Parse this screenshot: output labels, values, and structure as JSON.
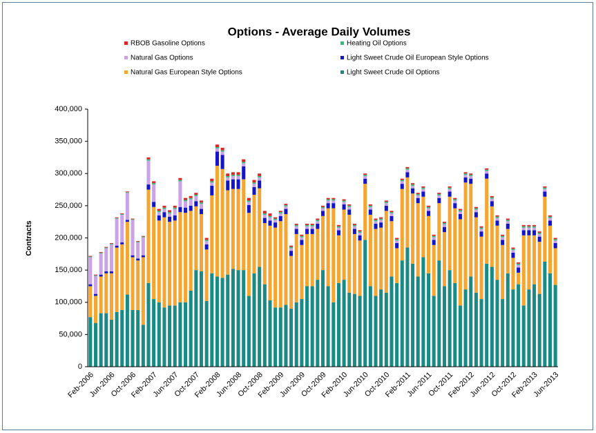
{
  "chart_data": {
    "type": "stacked_bar",
    "title": "Options - Average Daily Volumes",
    "y_label": "Contracts",
    "ylim": [
      0,
      400000
    ],
    "yticks": [
      0,
      {
        "value": 50000,
        "label": "50,000"
      },
      {
        "value": 100000,
        "label": "100,000"
      },
      {
        "value": 150000,
        "label": "150,000"
      },
      {
        "value": 200000,
        "label": "200,000"
      },
      {
        "value": 250000,
        "label": "250,000"
      },
      {
        "value": 300000,
        "label": "300,000"
      },
      {
        "value": 350000,
        "label": "350,000"
      },
      {
        "value": 400000,
        "label": "400,000"
      }
    ],
    "categories": [
      "Feb-2006",
      null,
      null,
      null,
      "Jun-2006",
      null,
      null,
      null,
      "Oct-2006",
      null,
      null,
      null,
      "Feb-2007",
      null,
      null,
      null,
      "Jun-2007",
      null,
      null,
      null,
      "Oct-2007",
      null,
      null,
      null,
      "Feb-2008",
      null,
      null,
      null,
      "Jun-2008",
      null,
      null,
      null,
      "Oct-2008",
      null,
      null,
      null,
      "Feb-2009",
      null,
      null,
      null,
      "Jun-2009",
      null,
      null,
      null,
      "Oct-2009",
      null,
      null,
      null,
      "Feb-2010",
      null,
      null,
      null,
      "Jun-2010",
      null,
      null,
      null,
      "Oct-2010",
      null,
      null,
      null,
      "Feb-2011",
      null,
      null,
      null,
      "Jun-2011",
      null,
      null,
      null,
      "Oct-2011",
      null,
      null,
      null,
      "Feb-2012",
      null,
      null,
      null,
      "Jun-2012",
      null,
      null,
      null,
      "Oct-2012",
      null,
      null,
      null,
      "Feb-2013",
      null,
      null,
      null,
      "Jun-2013"
    ],
    "series": [
      {
        "name": "Light Sweet Crude Oil Options",
        "color": "#1b8a85",
        "values": [
          77000,
          68000,
          83000,
          83000,
          73000,
          85000,
          88000,
          112000,
          88000,
          88000,
          65000,
          130000,
          105000,
          100000,
          92000,
          95000,
          95000,
          100000,
          100000,
          118000,
          150000,
          148000,
          102000,
          145000,
          140000,
          138000,
          143000,
          152000,
          150000,
          150000,
          110000,
          145000,
          155000,
          128000,
          103000,
          92000,
          92000,
          96000,
          90000,
          100000,
          105000,
          125000,
          125000,
          135000,
          150000,
          125000,
          100000,
          130000,
          135000,
          115000,
          113000,
          110000,
          197000,
          125000,
          110000,
          120000,
          115000,
          140000,
          130000,
          165000,
          185000,
          160000,
          140000,
          170000,
          145000,
          110000,
          165000,
          125000,
          150000,
          130000,
          95000,
          120000,
          140000,
          115000,
          105000,
          160000,
          155000,
          135000,
          105000,
          145000,
          120000,
          128000,
          95000,
          120000,
          128000,
          113000,
          163000,
          145000,
          127000
        ]
      },
      {
        "name": "Natural Gas European Style Options",
        "color": "#f4a532",
        "values": [
          48000,
          42000,
          57000,
          62000,
          72000,
          100000,
          102000,
          113000,
          82000,
          77000,
          105000,
          145000,
          143000,
          127000,
          140000,
          130000,
          132000,
          140000,
          139000,
          124000,
          99000,
          89000,
          80000,
          121000,
          172000,
          169000,
          131000,
          124000,
          126000,
          141000,
          129000,
          122000,
          122000,
          95000,
          116000,
          124000,
          134000,
          141000,
          82000,
          106000,
          84000,
          81000,
          81000,
          79000,
          84000,
          121000,
          146000,
          74000,
          109000,
          121000,
          93000,
          86000,
          87000,
          111000,
          104000,
          96000,
          127000,
          86000,
          54000,
          111000,
          109000,
          109000,
          114000,
          94000,
          89000,
          79000,
          89000,
          84000,
          114000,
          116000,
          134000,
          166000,
          144000,
          117000,
          97000,
          132000,
          94000,
          84000,
          84000,
          69000,
          49000,
          18000,
          109000,
          84000,
          76000,
          81000,
          101000,
          74000,
          57000
        ]
      },
      {
        "name": "Light Sweet Crude Oil European Style Options",
        "color": "#1515c8",
        "values": [
          3000,
          3000,
          3000,
          3000,
          3000,
          3000,
          3000,
          3000,
          3000,
          3000,
          3000,
          8000,
          8000,
          8000,
          8000,
          8000,
          8000,
          8000,
          8000,
          8000,
          8000,
          8000,
          8000,
          15000,
          22000,
          22000,
          15000,
          15000,
          15000,
          20000,
          12000,
          12000,
          12000,
          8000,
          8000,
          8000,
          8000,
          8000,
          8000,
          8000,
          8000,
          8000,
          8000,
          8000,
          8000,
          8000,
          8000,
          8000,
          8000,
          8000,
          8000,
          8000,
          8000,
          8000,
          8000,
          8000,
          8000,
          8000,
          8000,
          8000,
          8000,
          8000,
          8000,
          8000,
          8000,
          8000,
          8000,
          8000,
          8000,
          8000,
          8000,
          8000,
          8000,
          8000,
          8000,
          8000,
          8000,
          8000,
          8000,
          8000,
          8000,
          8000,
          8000,
          8000,
          8000,
          8000,
          8000,
          8000,
          8000
        ]
      },
      {
        "name": "Natural Gas Options",
        "color": "#c9a3e6",
        "values": [
          42000,
          28000,
          33000,
          36000,
          42000,
          42000,
          43000,
          42000,
          55000,
          25000,
          28000,
          37000,
          27000,
          5000,
          5000,
          5000,
          10000,
          40000,
          10000,
          10000,
          8000,
          8000,
          5000,
          5000,
          5000,
          5000,
          5000,
          5000,
          5000,
          5000,
          5000,
          5000,
          5000,
          5000,
          5000,
          4000,
          4000,
          4000,
          4000,
          4000,
          4000,
          4000,
          4000,
          4000,
          4000,
          4000,
          4000,
          4000,
          4000,
          4000,
          4000,
          4000,
          4000,
          4000,
          4000,
          4000,
          4000,
          4000,
          4000,
          4000,
          4000,
          4000,
          4000,
          4000,
          4000,
          4000,
          4000,
          4000,
          4000,
          4000,
          4000,
          4000,
          4000,
          4000,
          4000,
          4000,
          4000,
          4000,
          4000,
          4000,
          4000,
          4000,
          4000,
          4000,
          4000,
          4000,
          4000,
          4000,
          4000
        ]
      },
      {
        "name": "Heating Oil Options",
        "color": "#2fbf7a",
        "values": [
          1000,
          1000,
          1000,
          1000,
          1000,
          1000,
          1000,
          1000,
          1000,
          1000,
          1000,
          2000,
          2000,
          2000,
          2000,
          2000,
          2000,
          2000,
          2000,
          2000,
          2000,
          2000,
          2000,
          2000,
          2000,
          2000,
          2000,
          2000,
          2000,
          2000,
          2000,
          2000,
          2000,
          2000,
          2000,
          2000,
          2000,
          2000,
          2000,
          2000,
          2000,
          2000,
          2000,
          2000,
          2000,
          2000,
          2000,
          2000,
          2000,
          2000,
          2000,
          2000,
          2000,
          2000,
          2000,
          2000,
          2000,
          2000,
          2000,
          2000,
          2000,
          2000,
          2000,
          2000,
          2000,
          2000,
          2000,
          2000,
          2000,
          2000,
          2000,
          2000,
          2000,
          2000,
          2000,
          2000,
          2000,
          2000,
          2000,
          2000,
          2000,
          2000,
          2000,
          2000,
          2000,
          2000,
          2000,
          2000,
          2000
        ]
      },
      {
        "name": "RBOB Gasoline Options",
        "color": "#e02424",
        "values": [
          1000,
          1000,
          1000,
          1000,
          1000,
          1000,
          1000,
          1000,
          1000,
          1000,
          1000,
          3000,
          3000,
          3000,
          3000,
          3000,
          3000,
          3000,
          3000,
          3000,
          3000,
          3000,
          3000,
          4000,
          4000,
          4000,
          4000,
          4000,
          4000,
          4000,
          4000,
          4000,
          4000,
          4000,
          4000,
          2000,
          2000,
          2000,
          2000,
          2000,
          2000,
          2000,
          2000,
          2000,
          2000,
          2000,
          2000,
          2000,
          2000,
          2000,
          2000,
          2000,
          2000,
          2000,
          2000,
          2000,
          2000,
          2000,
          2000,
          2000,
          2000,
          2000,
          2000,
          2000,
          2000,
          2000,
          2000,
          2000,
          2000,
          2000,
          2000,
          2000,
          2000,
          2000,
          2000,
          2000,
          2000,
          2000,
          2000,
          2000,
          2000,
          2000,
          2000,
          2000,
          2000,
          2000,
          2000,
          2000,
          2000
        ]
      }
    ]
  }
}
